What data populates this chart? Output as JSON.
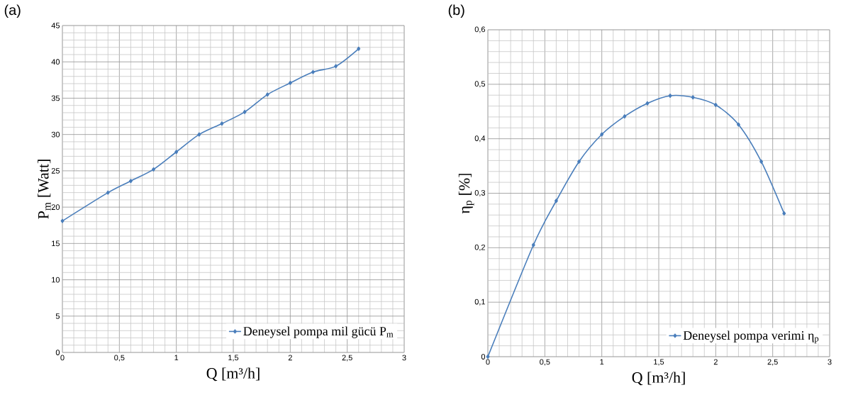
{
  "chart_data": [
    {
      "type": "line",
      "title": "(a)",
      "xlabel": "Q [m³/h]",
      "ylabel": "P$_{m}$ [Watt]",
      "x": [
        0,
        0.4,
        0.6,
        0.8,
        1.0,
        1.2,
        1.4,
        1.6,
        1.8,
        2.0,
        2.2,
        2.4,
        2.6
      ],
      "series": [
        {
          "name": "Deneysel pompa mil gücü P$_{m}$",
          "color": "#4a7ebb",
          "values": [
            18.1,
            22.0,
            23.6,
            25.2,
            27.6,
            30.0,
            31.5,
            33.1,
            35.5,
            37.1,
            38.6,
            39.4,
            41.8
          ]
        }
      ],
      "xlim": [
        0,
        3
      ],
      "ylim": [
        0,
        45
      ],
      "xticks": [
        0,
        {
          "value": 0.5,
          "label": "0,5"
        },
        1,
        {
          "value": 1.5,
          "label": "1,5"
        },
        2,
        {
          "value": 2.5,
          "label": "2,5"
        },
        3
      ],
      "yticks": [
        0,
        5,
        10,
        15,
        20,
        25,
        30,
        35,
        40,
        45
      ],
      "grid": true,
      "legend": "bottom right",
      "marker": "diamond",
      "line_style": "solid"
    },
    {
      "type": "line",
      "title": "(b)",
      "xlabel": "Q [m³/h]",
      "ylabel": "η$_{p}$ [%]",
      "x": [
        0,
        0.4,
        0.6,
        0.8,
        1.0,
        1.2,
        1.4,
        1.6,
        1.8,
        2.0,
        2.2,
        2.4,
        2.6
      ],
      "series": [
        {
          "name": "Deneysel pompa verimi η$_{p}$",
          "color": "#4a7ebb",
          "values": [
            0,
            0.205,
            0.286,
            0.358,
            0.408,
            0.441,
            0.465,
            0.479,
            0.476,
            0.462,
            0.426,
            0.358,
            0.263
          ]
        }
      ],
      "xlim": [
        0,
        3
      ],
      "ylim": [
        0,
        0.6
      ],
      "xticks": [
        0,
        {
          "value": 0.5,
          "label": "0,5"
        },
        1,
        {
          "value": 1.5,
          "label": "1,5"
        },
        2,
        {
          "value": 2.5,
          "label": "2,5"
        },
        3
      ],
      "yticks": [
        0,
        {
          "value": 0.1,
          "label": "0,1"
        },
        {
          "value": 0.2,
          "label": "0,2"
        },
        {
          "value": 0.3,
          "label": "0,3"
        },
        {
          "value": 0.4,
          "label": "0,4"
        },
        {
          "value": 0.5,
          "label": "0,5"
        },
        {
          "value": 0.6,
          "label": "0,6"
        }
      ],
      "grid": true,
      "legend": "bottom right",
      "marker": "diamond",
      "line_style": "solid"
    }
  ]
}
